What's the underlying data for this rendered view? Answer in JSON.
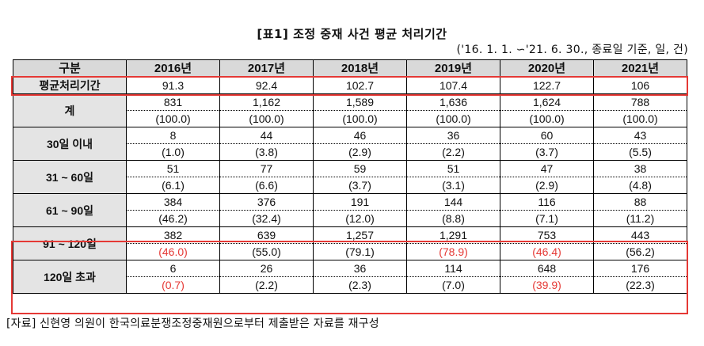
{
  "title": "[표1] 조정 중재 사건 평균 처리기간",
  "note": "('16. 1. 1. ∽'21. 6. 30., 종료일 기준, 일, 건)",
  "header": [
    "구분",
    "2016년",
    "2017년",
    "2018년",
    "2019년",
    "2020년",
    "2021년"
  ],
  "avg_row": {
    "label": "평균처리기간",
    "values": [
      "91.3",
      "92.4",
      "102.7",
      "107.4",
      "122.7",
      "106"
    ]
  },
  "groups": [
    {
      "label": "계",
      "counts": [
        "831",
        "1,162",
        "1,589",
        "1,636",
        "1,624",
        "788"
      ],
      "pcts": [
        "(100.0)",
        "(100.0)",
        "(100.0)",
        "(100.0)",
        "(100.0)",
        "(100.0)"
      ],
      "pct_red": [
        false,
        false,
        false,
        false,
        false,
        false
      ]
    },
    {
      "label": "30일 이내",
      "counts": [
        "8",
        "44",
        "46",
        "36",
        "60",
        "43"
      ],
      "pcts": [
        "(1.0)",
        "(3.8)",
        "(2.9)",
        "(2.2)",
        "(3.7)",
        "(5.5)"
      ],
      "pct_red": [
        false,
        false,
        false,
        false,
        false,
        false
      ]
    },
    {
      "label": "31 ~ 60일",
      "counts": [
        "51",
        "77",
        "59",
        "51",
        "47",
        "38"
      ],
      "pcts": [
        "(6.1)",
        "(6.6)",
        "(3.7)",
        "(3.1)",
        "(2.9)",
        "(4.8)"
      ],
      "pct_red": [
        false,
        false,
        false,
        false,
        false,
        false
      ]
    },
    {
      "label": "61 ~ 90일",
      "counts": [
        "384",
        "376",
        "191",
        "144",
        "116",
        "88"
      ],
      "pcts": [
        "(46.2)",
        "(32.4)",
        "(12.0)",
        "(8.8)",
        "(7.1)",
        "(11.2)"
      ],
      "pct_red": [
        false,
        false,
        false,
        false,
        false,
        false
      ]
    },
    {
      "label": "91 ~ 120일",
      "counts": [
        "382",
        "639",
        "1,257",
        "1,291",
        "753",
        "443"
      ],
      "pcts": [
        "(46.0)",
        "(55.0)",
        "(79.1)",
        "(78.9)",
        "(46.4)",
        "(56.2)"
      ],
      "pct_red": [
        true,
        false,
        false,
        true,
        true,
        false
      ]
    },
    {
      "label": "120일 초과",
      "counts": [
        "6",
        "26",
        "36",
        "114",
        "648",
        "176"
      ],
      "pcts": [
        "(0.7)",
        "(2.2)",
        "(2.3)",
        "(7.0)",
        "(39.9)",
        "(22.3)"
      ],
      "pct_red": [
        true,
        false,
        false,
        false,
        true,
        false
      ]
    }
  ],
  "highlight_color": "#e53935",
  "source": "[자료] 신현영 의원이 한국의료분쟁조정중재원으로부터 제출받은 자료를 재구성"
}
